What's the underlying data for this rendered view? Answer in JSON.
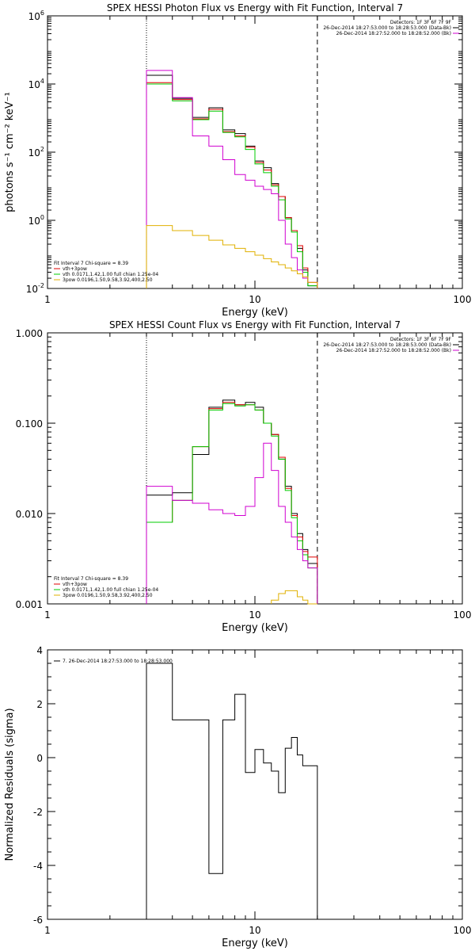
{
  "chart_data": [
    {
      "type": "line",
      "title": "SPEX HESSI Photon Flux vs Energy with Fit Function, Interval 7",
      "xlabel": "Energy (keV)",
      "ylabel": "photons s⁻¹ cm⁻² keV⁻¹",
      "xscale": "log",
      "yscale": "log",
      "xlim": [
        1,
        100
      ],
      "ylim": [
        0.01,
        1000000
      ],
      "x_ticks": [
        {
          "v": 1,
          "label": "1"
        },
        {
          "v": 10,
          "label": "10"
        },
        {
          "v": 100,
          "label": "100"
        }
      ],
      "y_ticks": [
        {
          "v": 0.01,
          "base": "10",
          "exp": "-2"
        },
        {
          "v": 1,
          "base": "10",
          "exp": "0"
        },
        {
          "v": 100,
          "base": "10",
          "exp": "2"
        },
        {
          "v": 10000,
          "base": "10",
          "exp": "4"
        },
        {
          "v": 1000000,
          "base": "10",
          "exp": "6"
        }
      ],
      "vlines": [
        {
          "x": 3,
          "style": "dotted"
        },
        {
          "x": 20,
          "style": "dashed"
        }
      ],
      "info_lines": [
        "Detectors: 1F 3F 6F 7F 9F",
        "26-Dec-2014 18:27:53.000 to 18:28:53.000 (Data-Bk)",
        "26-Dec-2014 18:27:52.000 to 18:28:52.000 (Bk)"
      ],
      "info_colors": [
        "",
        "#000000",
        "#d000d0"
      ],
      "legend_lines": [
        "Fit Interval 7   Chi-square = 8.39",
        "vth+3pow",
        "vth 0.0171,1.42,1.00  full chian 1.25e-04",
        "3pow 0.0196,1.50,9.58,3.92,400,2.50"
      ],
      "legend_colors": [
        "",
        "#e00000",
        "#00cc00",
        "#e0b000"
      ],
      "edges": [
        3,
        4,
        5,
        6,
        7,
        8,
        9,
        10,
        11,
        12,
        13,
        14,
        15,
        16,
        17,
        18,
        20
      ],
      "series": [
        {
          "color": "#000000",
          "values": [
            18000,
            3800,
            1050,
            2000,
            450,
            350,
            150,
            55,
            35,
            12,
            5,
            1.2,
            0.5,
            0.15,
            0.035,
            0.012
          ]
        },
        {
          "color": "#e00000",
          "values": [
            11000,
            3500,
            950,
            1800,
            400,
            300,
            140,
            50,
            30,
            11,
            5,
            1.2,
            0.5,
            0.18,
            0.04,
            0.015
          ]
        },
        {
          "color": "#00cc00",
          "values": [
            10000,
            3200,
            900,
            1600,
            380,
            280,
            120,
            45,
            25,
            10,
            4,
            1.1,
            0.45,
            0.12,
            0.03,
            0.012
          ]
        },
        {
          "color": "#d000d0",
          "values": [
            25000,
            4000,
            300,
            150,
            60,
            22,
            15,
            10,
            8,
            6,
            1,
            0.2,
            0.08,
            0.035,
            0.02,
            0.015
          ]
        },
        {
          "color": "#e0b000",
          "values": [
            0.7,
            0.5,
            0.36,
            0.26,
            0.19,
            0.15,
            0.12,
            0.095,
            0.075,
            0.06,
            0.05,
            0.04,
            0.033,
            0.027,
            0.022,
            0.015
          ]
        }
      ]
    },
    {
      "type": "line",
      "title": "SPEX HESSI Count Flux vs Energy with Fit Function, Interval 7",
      "xlabel": "Energy (keV)",
      "ylabel": "",
      "xscale": "log",
      "yscale": "log",
      "xlim": [
        1,
        100
      ],
      "ylim": [
        0.001,
        1
      ],
      "x_ticks": [
        {
          "v": 1,
          "label": "1"
        },
        {
          "v": 10,
          "label": "10"
        },
        {
          "v": 100,
          "label": "100"
        }
      ],
      "y_ticks": [
        {
          "v": 0.001,
          "label": "0.001"
        },
        {
          "v": 0.01,
          "label": "0.010"
        },
        {
          "v": 0.1,
          "label": "0.100"
        },
        {
          "v": 1,
          "label": "1.000"
        }
      ],
      "vlines": [
        {
          "x": 3,
          "style": "dotted"
        },
        {
          "x": 20,
          "style": "dashed"
        }
      ],
      "info_lines": [
        "Detectors: 1F 3F 6F 7F 9F",
        "26-Dec-2014 18:27:53.000 to 18:28:53.000 (Data-Bk)",
        "26-Dec-2014 18:27:52.000 to 18:28:52.000 (Bk)"
      ],
      "info_colors": [
        "",
        "#000000",
        "#d000d0"
      ],
      "legend_lines": [
        "Fit Interval 7   Chi-square = 8.39",
        "vth+3pow",
        "vth 0.0171,1.42,1.00  full chian 1.25e-04",
        "3pow 0.0196,1.50,9.58,3.92,400,2.50"
      ],
      "legend_colors": [
        "",
        "#e00000",
        "#00cc00",
        "#e0b000"
      ],
      "edges": [
        3,
        4,
        5,
        6,
        7,
        8,
        9,
        10,
        11,
        12,
        13,
        14,
        15,
        16,
        17,
        18,
        20
      ],
      "series": [
        {
          "color": "#000000",
          "values": [
            0.016,
            0.017,
            0.045,
            0.15,
            0.18,
            0.16,
            0.17,
            0.15,
            0.1,
            0.075,
            0.04,
            0.02,
            0.01,
            0.006,
            0.004,
            0.0028
          ]
        },
        {
          "color": "#e00000",
          "values": [
            0.008,
            0.014,
            0.055,
            0.145,
            0.17,
            0.16,
            0.16,
            0.14,
            0.1,
            0.075,
            0.042,
            0.019,
            0.0095,
            0.0055,
            0.0038,
            0.0033
          ]
        },
        {
          "color": "#00cc00",
          "values": [
            0.008,
            0.014,
            0.055,
            0.14,
            0.165,
            0.155,
            0.16,
            0.14,
            0.1,
            0.072,
            0.04,
            0.018,
            0.009,
            0.005,
            0.0035,
            0.0025
          ]
        },
        {
          "color": "#d000d0",
          "values": [
            0.02,
            0.014,
            0.013,
            0.011,
            0.01,
            0.0095,
            0.012,
            0.025,
            0.06,
            0.03,
            0.012,
            0.008,
            0.0055,
            0.004,
            0.003,
            0.0025
          ]
        },
        {
          "color": "#e0b000",
          "values": [
            null,
            null,
            null,
            null,
            null,
            null,
            null,
            null,
            null,
            0.0011,
            0.0013,
            0.0014,
            0.0014,
            0.0012,
            0.0011,
            0.001
          ]
        }
      ]
    },
    {
      "type": "line",
      "title": "",
      "xlabel": "Energy (keV)",
      "ylabel": "Normalized Residuals (sigma)",
      "xscale": "log",
      "yscale": "linear",
      "xlim": [
        1,
        100
      ],
      "ylim": [
        -6,
        4
      ],
      "x_ticks": [
        {
          "v": 1,
          "label": "1"
        },
        {
          "v": 10,
          "label": "10"
        },
        {
          "v": 100,
          "label": "100"
        }
      ],
      "y_ticks": [
        {
          "v": -6,
          "label": "-6"
        },
        {
          "v": -4,
          "label": "-4"
        },
        {
          "v": -2,
          "label": "-2"
        },
        {
          "v": 0,
          "label": "0"
        },
        {
          "v": 2,
          "label": "2"
        },
        {
          "v": 4,
          "label": "4"
        }
      ],
      "vlines": [],
      "info_lines": [],
      "info_colors": [],
      "legend_lines": [
        "7. 26-Dec-2014 18:27:53.000 to 18:28:53.000"
      ],
      "legend_colors": [
        "#000000"
      ],
      "edges": [
        3,
        4,
        5,
        6,
        7,
        8,
        9,
        10,
        11,
        12,
        13,
        14,
        15,
        16,
        17,
        18,
        20
      ],
      "series": [
        {
          "color": "#000000",
          "values": [
            3.5,
            1.4,
            1.4,
            -4.3,
            1.4,
            2.35,
            -0.55,
            0.3,
            -0.2,
            -0.5,
            -1.3,
            0.35,
            0.75,
            0.1,
            -0.3,
            -0.3
          ]
        }
      ]
    }
  ]
}
